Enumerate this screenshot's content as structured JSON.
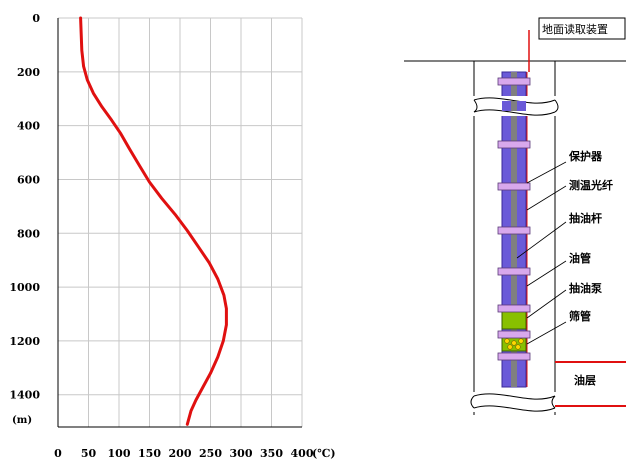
{
  "chart_data": {
    "type": "line",
    "x_unit": "(℃)",
    "y_unit": "(m)",
    "x_ticks": [
      0,
      50,
      100,
      150,
      200,
      250,
      300,
      350,
      400
    ],
    "y_ticks": [
      0,
      200,
      400,
      600,
      800,
      1000,
      1200,
      1400
    ],
    "xlim": [
      0,
      400
    ],
    "ylim": [
      0,
      1520
    ],
    "grid": true,
    "series": [
      {
        "color": "#e01010",
        "points": [
          {
            "x": 37,
            "y": 0
          },
          {
            "x": 38,
            "y": 60
          },
          {
            "x": 39,
            "y": 120
          },
          {
            "x": 42,
            "y": 180
          },
          {
            "x": 48,
            "y": 230
          },
          {
            "x": 58,
            "y": 280
          },
          {
            "x": 72,
            "y": 330
          },
          {
            "x": 88,
            "y": 380
          },
          {
            "x": 103,
            "y": 430
          },
          {
            "x": 118,
            "y": 490
          },
          {
            "x": 134,
            "y": 550
          },
          {
            "x": 150,
            "y": 610
          },
          {
            "x": 170,
            "y": 670
          },
          {
            "x": 192,
            "y": 730
          },
          {
            "x": 212,
            "y": 790
          },
          {
            "x": 230,
            "y": 850
          },
          {
            "x": 248,
            "y": 910
          },
          {
            "x": 262,
            "y": 970
          },
          {
            "x": 272,
            "y": 1030
          },
          {
            "x": 276,
            "y": 1080
          },
          {
            "x": 276,
            "y": 1140
          },
          {
            "x": 271,
            "y": 1200
          },
          {
            "x": 262,
            "y": 1260
          },
          {
            "x": 250,
            "y": 1320
          },
          {
            "x": 238,
            "y": 1370
          },
          {
            "x": 226,
            "y": 1420
          },
          {
            "x": 218,
            "y": 1460
          },
          {
            "x": 212,
            "y": 1510
          }
        ]
      }
    ]
  },
  "well": {
    "surface_device": "地面读取装置",
    "labels": [
      "保护器",
      "测温光纤",
      "抽油杆",
      "油管",
      "抽油泵",
      "筛管"
    ],
    "reservoir": "油层",
    "colors": {
      "fiber": "#e01010",
      "tubing": "#6a5ad8",
      "rod": "#808080",
      "protector": "#d8a8ec",
      "pump": "#88c000",
      "screen_hole": "#ffd800"
    }
  }
}
